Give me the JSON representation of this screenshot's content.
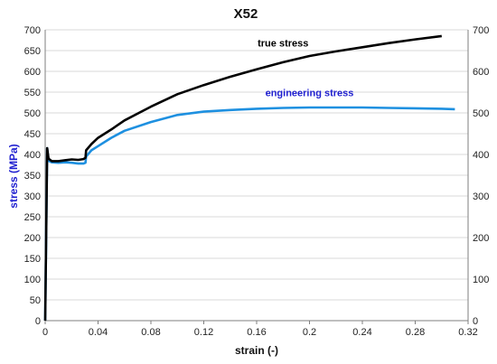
{
  "chart_data": {
    "type": "line",
    "title": "X52",
    "xlabel": "strain (-)",
    "ylabel": "stress (MPa)",
    "xlim": [
      0,
      0.32
    ],
    "ylim": [
      0,
      700
    ],
    "y2lim": [
      0,
      700
    ],
    "x_ticks": [
      "0",
      "0.04",
      "0.08",
      "0.12",
      "0.16",
      "0.2",
      "0.24",
      "0.28",
      "0.32"
    ],
    "y_ticks": [
      "0",
      "50",
      "100",
      "150",
      "200",
      "250",
      "300",
      "350",
      "400",
      "450",
      "500",
      "550",
      "600",
      "650",
      "700"
    ],
    "y2_ticks": [
      "0",
      "100",
      "200",
      "300",
      "400",
      "500",
      "600",
      "700"
    ],
    "grid": "horizontal",
    "ylabel_color": "#1f1fd0",
    "series": [
      {
        "name": "true stress",
        "color": "#000000",
        "points": [
          [
            0,
            0
          ],
          [
            0.0015,
            415
          ],
          [
            0.0025,
            390
          ],
          [
            0.005,
            384
          ],
          [
            0.01,
            384
          ],
          [
            0.015,
            386
          ],
          [
            0.02,
            388
          ],
          [
            0.025,
            387
          ],
          [
            0.029,
            389
          ],
          [
            0.0305,
            392
          ],
          [
            0.031,
            410
          ],
          [
            0.035,
            425
          ],
          [
            0.04,
            440
          ],
          [
            0.05,
            460
          ],
          [
            0.06,
            482
          ],
          [
            0.08,
            515
          ],
          [
            0.1,
            545
          ],
          [
            0.12,
            567
          ],
          [
            0.14,
            587
          ],
          [
            0.16,
            605
          ],
          [
            0.18,
            622
          ],
          [
            0.2,
            637
          ],
          [
            0.22,
            648
          ],
          [
            0.24,
            658
          ],
          [
            0.26,
            668
          ],
          [
            0.28,
            677
          ],
          [
            0.3,
            685
          ]
        ]
      },
      {
        "name": "engineering stress",
        "color": "#1e90e0",
        "points": [
          [
            0,
            0
          ],
          [
            0.0015,
            415
          ],
          [
            0.0025,
            385
          ],
          [
            0.005,
            381
          ],
          [
            0.01,
            380
          ],
          [
            0.015,
            381
          ],
          [
            0.02,
            380
          ],
          [
            0.025,
            378
          ],
          [
            0.029,
            378
          ],
          [
            0.0305,
            380
          ],
          [
            0.031,
            395
          ],
          [
            0.035,
            410
          ],
          [
            0.04,
            420
          ],
          [
            0.05,
            440
          ],
          [
            0.06,
            457
          ],
          [
            0.08,
            478
          ],
          [
            0.1,
            495
          ],
          [
            0.12,
            503
          ],
          [
            0.14,
            507
          ],
          [
            0.16,
            510
          ],
          [
            0.18,
            512
          ],
          [
            0.2,
            513
          ],
          [
            0.22,
            513
          ],
          [
            0.24,
            513
          ],
          [
            0.26,
            512
          ],
          [
            0.28,
            511
          ],
          [
            0.3,
            510
          ],
          [
            0.31,
            509
          ]
        ]
      }
    ],
    "annotations": [
      {
        "text": "true stress",
        "x": 0.18,
        "y": 660,
        "color": "#000000"
      },
      {
        "text": "engineering stress",
        "x": 0.2,
        "y": 540,
        "color": "#1f1fd0"
      }
    ]
  }
}
